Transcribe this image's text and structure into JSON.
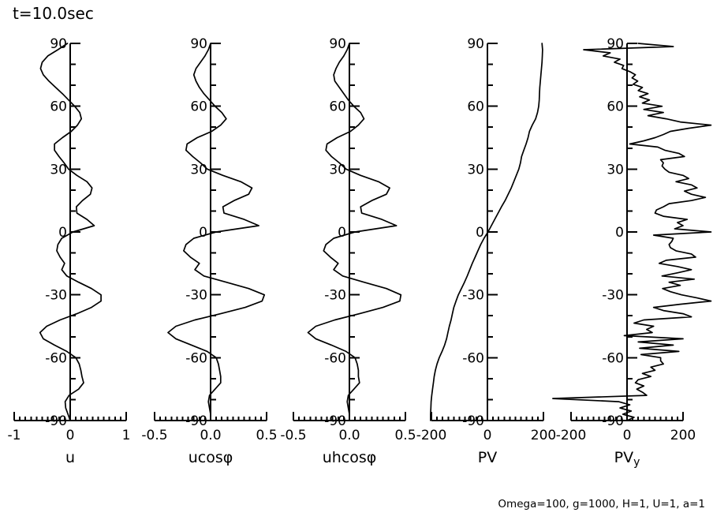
{
  "page": {
    "title": "t=10.0sec",
    "footer": "Omega=100, g=1000, H=1, U=1, a=1"
  },
  "colors": {
    "foreground": "#000000",
    "background": "#ffffff"
  },
  "chart_data": {
    "type": "line",
    "layout_hint": "five vertical latitude-profile panels, shared latitude axis -90..90, grid off, no legend",
    "y_axis": {
      "range": [
        -90,
        90
      ],
      "major_ticks": [
        90,
        60,
        30,
        0,
        -30,
        -60,
        -90
      ],
      "tick_labels": [
        "90",
        "60",
        "30",
        "0",
        "-30",
        "-60",
        "-90"
      ],
      "minor_step": 10
    },
    "panels": [
      {
        "id": "u",
        "xlabel": "u",
        "xlabel_sub": "",
        "xlim": [
          -1,
          1
        ],
        "x_major_ticks": [
          -1,
          0,
          1
        ],
        "x_tick_labels": [
          "-1",
          "0",
          "1"
        ],
        "x_minor_step": 0.1,
        "lats": [
          90,
          87,
          84,
          81,
          78,
          75,
          72,
          69,
          66,
          63,
          60,
          57,
          54,
          51,
          48,
          45,
          42,
          39,
          36,
          33,
          30,
          27,
          24,
          21,
          18,
          15,
          12,
          9,
          6,
          3,
          0,
          -3,
          -6,
          -9,
          -12,
          -15,
          -18,
          -21,
          -24,
          -27,
          -30,
          -33,
          -36,
          -39,
          -42,
          -45,
          -48,
          -51,
          -54,
          -57,
          -60,
          -63,
          -66,
          -69,
          -72,
          -75,
          -78,
          -81,
          -84,
          -87,
          -90
        ],
        "values": [
          -0.05,
          -0.22,
          -0.4,
          -0.5,
          -0.53,
          -0.48,
          -0.38,
          -0.26,
          -0.14,
          -0.03,
          0.08,
          0.17,
          0.2,
          0.13,
          0.02,
          -0.14,
          -0.28,
          -0.28,
          -0.2,
          -0.11,
          -0.03,
          0.12,
          0.3,
          0.39,
          0.36,
          0.22,
          0.11,
          0.12,
          0.3,
          0.43,
          0.05,
          -0.15,
          -0.22,
          -0.24,
          -0.18,
          -0.1,
          -0.15,
          -0.06,
          0.15,
          0.38,
          0.55,
          0.55,
          0.38,
          0.12,
          -0.18,
          -0.42,
          -0.54,
          -0.48,
          -0.28,
          -0.06,
          0.1,
          0.16,
          0.19,
          0.21,
          0.24,
          0.15,
          -0.02,
          -0.09,
          -0.08,
          -0.04,
          0.0
        ]
      },
      {
        "id": "ucos",
        "xlabel": "ucosφ",
        "xlabel_sub": "",
        "xlim": [
          -0.5,
          0.5
        ],
        "x_major_ticks": [
          -0.5,
          0,
          0.5
        ],
        "x_tick_labels": [
          "-0.5",
          "0.0",
          "0.5"
        ],
        "x_minor_step": 0.05,
        "lats": [
          90,
          87,
          84,
          81,
          78,
          75,
          72,
          69,
          66,
          63,
          60,
          57,
          54,
          51,
          48,
          45,
          42,
          39,
          36,
          33,
          30,
          27,
          24,
          21,
          18,
          15,
          12,
          9,
          6,
          3,
          0,
          -3,
          -6,
          -9,
          -12,
          -15,
          -18,
          -21,
          -24,
          -27,
          -30,
          -33,
          -36,
          -39,
          -42,
          -45,
          -48,
          -51,
          -54,
          -57,
          -60,
          -63,
          -66,
          -69,
          -72,
          -75,
          -78,
          -81,
          -84,
          -87,
          -90
        ],
        "values": [
          0.0,
          -0.02,
          -0.05,
          -0.09,
          -0.13,
          -0.15,
          -0.13,
          -0.1,
          -0.06,
          -0.01,
          0.04,
          0.1,
          0.14,
          0.09,
          0.01,
          -0.12,
          -0.21,
          -0.22,
          -0.16,
          -0.09,
          -0.03,
          0.11,
          0.27,
          0.37,
          0.34,
          0.21,
          0.11,
          0.12,
          0.3,
          0.43,
          0.05,
          -0.15,
          -0.22,
          -0.24,
          -0.18,
          -0.1,
          -0.14,
          -0.06,
          0.14,
          0.34,
          0.48,
          0.46,
          0.31,
          0.09,
          -0.14,
          -0.31,
          -0.38,
          -0.31,
          -0.17,
          -0.03,
          0.05,
          0.07,
          0.08,
          0.09,
          0.09,
          0.04,
          -0.01,
          -0.02,
          -0.01,
          0.0,
          0.0
        ]
      },
      {
        "id": "uhcos",
        "xlabel": "uhcosφ",
        "xlabel_sub": "",
        "xlim": [
          -0.5,
          0.5
        ],
        "x_major_ticks": [
          -0.5,
          0,
          0.5
        ],
        "x_tick_labels": [
          "-0.5",
          "0.0",
          "0.5"
        ],
        "x_minor_step": 0.05,
        "lats": [
          90,
          87,
          84,
          81,
          78,
          75,
          72,
          69,
          66,
          63,
          60,
          57,
          54,
          51,
          48,
          45,
          42,
          39,
          36,
          33,
          30,
          27,
          24,
          21,
          18,
          15,
          12,
          9,
          6,
          3,
          0,
          -3,
          -6,
          -9,
          -12,
          -15,
          -18,
          -21,
          -24,
          -27,
          -30,
          -33,
          -36,
          -39,
          -42,
          -45,
          -48,
          -51,
          -54,
          -57,
          -60,
          -63,
          -66,
          -69,
          -72,
          -75,
          -78,
          -81,
          -84,
          -87,
          -90
        ],
        "values": [
          0.0,
          -0.02,
          -0.05,
          -0.09,
          -0.12,
          -0.14,
          -0.13,
          -0.09,
          -0.05,
          -0.01,
          0.04,
          0.1,
          0.13,
          0.08,
          0.01,
          -0.11,
          -0.2,
          -0.21,
          -0.16,
          -0.09,
          -0.03,
          0.1,
          0.26,
          0.36,
          0.33,
          0.2,
          0.1,
          0.11,
          0.29,
          0.42,
          0.05,
          -0.14,
          -0.21,
          -0.23,
          -0.17,
          -0.1,
          -0.14,
          -0.06,
          0.13,
          0.33,
          0.46,
          0.45,
          0.3,
          0.09,
          -0.13,
          -0.3,
          -0.37,
          -0.3,
          -0.16,
          -0.03,
          0.05,
          0.07,
          0.08,
          0.08,
          0.09,
          0.04,
          -0.01,
          -0.02,
          -0.01,
          0.0,
          0.0
        ]
      },
      {
        "id": "pv",
        "xlabel": "PV",
        "xlabel_sub": "",
        "xlim": [
          -200,
          200
        ],
        "x_major_ticks": [
          -200,
          0,
          200
        ],
        "x_tick_labels": [
          "-200",
          "0",
          "200"
        ],
        "x_minor_step": 20,
        "lats": [
          90,
          87,
          84,
          81,
          78,
          75,
          72,
          69,
          66,
          63,
          60,
          57,
          54,
          51,
          48,
          45,
          42,
          39,
          36,
          33,
          30,
          27,
          24,
          21,
          18,
          15,
          12,
          9,
          6,
          3,
          0,
          -3,
          -6,
          -9,
          -12,
          -15,
          -18,
          -21,
          -24,
          -27,
          -30,
          -33,
          -36,
          -39,
          -42,
          -45,
          -48,
          -51,
          -54,
          -57,
          -60,
          -63,
          -66,
          -69,
          -72,
          -75,
          -78,
          -81,
          -84,
          -87,
          -90
        ],
        "values": [
          195,
          197,
          196,
          195,
          193,
          191,
          189,
          187,
          186,
          185,
          183,
          179,
          172,
          160,
          150,
          145,
          138,
          130,
          122,
          118,
          112,
          103,
          94,
          85,
          74,
          63,
          50,
          38,
          26,
          14,
          2,
          -12,
          -24,
          -34,
          -44,
          -54,
          -63,
          -72,
          -82,
          -93,
          -104,
          -112,
          -120,
          -125,
          -130,
          -136,
          -141,
          -146,
          -153,
          -162,
          -172,
          -180,
          -186,
          -190,
          -193,
          -196,
          -199,
          -201,
          -202,
          -203,
          -203
        ]
      },
      {
        "id": "pvy",
        "xlabel": "PV",
        "xlabel_sub": "y",
        "xlim": [
          -200,
          200
        ],
        "x_major_ticks": [
          -200,
          0,
          200
        ],
        "x_tick_labels": [
          "-200",
          "0",
          "200"
        ],
        "x_minor_step": 20,
        "lats": [
          90,
          88.5,
          87,
          85.5,
          84,
          82.5,
          81,
          79.5,
          78,
          76.5,
          75,
          73.5,
          72,
          70.5,
          69,
          67.5,
          66,
          64.5,
          63,
          61.5,
          60,
          58.5,
          57,
          55.5,
          54,
          52.5,
          51,
          49.5,
          48,
          46.5,
          45,
          43.5,
          42,
          40.5,
          39,
          37.5,
          36,
          34.5,
          33,
          31.5,
          30,
          28.5,
          27,
          25.5,
          24,
          22.5,
          21,
          19.5,
          18,
          16.5,
          15,
          13.5,
          12,
          10.5,
          9,
          7.5,
          6,
          4.5,
          3,
          1.5,
          0,
          -1.5,
          -3,
          -4.5,
          -6,
          -7.5,
          -9,
          -10.5,
          -12,
          -13.5,
          -15,
          -16.5,
          -18,
          -19.5,
          -21,
          -22.5,
          -24,
          -25.5,
          -27,
          -28.5,
          -30,
          -31.5,
          -33,
          -34.5,
          -36,
          -37.5,
          -39,
          -40.5,
          -42,
          -43.5,
          -45,
          -46.5,
          -48,
          -49.5,
          -51,
          -52.5,
          -54,
          -55.5,
          -57,
          -58.5,
          -60,
          -61.5,
          -63,
          -64.5,
          -66,
          -67.5,
          -69,
          -70.5,
          -72,
          -73.5,
          -75,
          -76.5,
          -78,
          -79.5,
          -81,
          -82.5,
          -84,
          -85.5,
          -87,
          -88.5,
          -90
        ],
        "values": [
          40,
          165,
          -155,
          -60,
          -85,
          -25,
          -45,
          -12,
          -18,
          10,
          30,
          18,
          38,
          22,
          55,
          40,
          75,
          45,
          80,
          55,
          125,
          60,
          130,
          75,
          140,
          190,
          300,
          220,
          155,
          130,
          100,
          60,
          10,
          110,
          135,
          185,
          205,
          120,
          130,
          125,
          135,
          150,
          200,
          220,
          175,
          230,
          250,
          205,
          230,
          280,
          230,
          150,
          130,
          105,
          100,
          130,
          215,
          180,
          200,
          170,
          300,
          95,
          165,
          160,
          150,
          155,
          175,
          230,
          245,
          140,
          115,
          180,
          230,
          180,
          125,
          240,
          150,
          190,
          127,
          155,
          195,
          250,
          300,
          190,
          95,
          130,
          200,
          230,
          60,
          25,
          95,
          70,
          90,
          -10,
          200,
          40,
          165,
          45,
          185,
          50,
          120,
          120,
          130,
          85,
          100,
          55,
          85,
          40,
          30,
          60,
          35,
          55,
          70,
          -265,
          -30,
          10,
          -25,
          15,
          -15,
          25,
          0
        ]
      }
    ]
  }
}
